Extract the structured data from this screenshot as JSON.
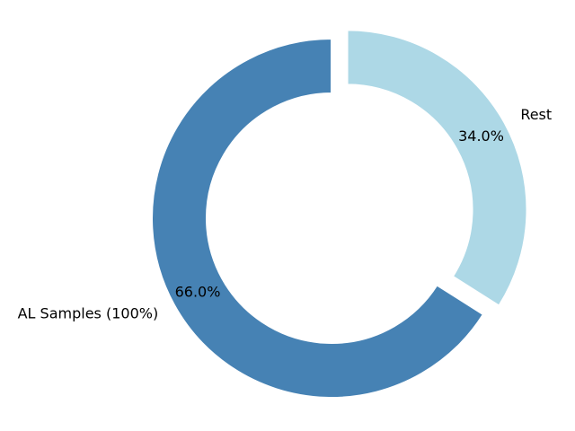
{
  "chart_data": {
    "type": "pie",
    "donut": true,
    "start_angle_deg": 90,
    "direction": "clockwise",
    "slices": [
      {
        "label": "Rest",
        "value": 34.0,
        "pct_label": "34.0%",
        "color": "#add8e6",
        "exploded": true
      },
      {
        "label": "AL Samples (100%)",
        "value": 66.0,
        "pct_label": "66.0%",
        "color": "#4682b4",
        "exploded": false
      }
    ],
    "title": ""
  }
}
